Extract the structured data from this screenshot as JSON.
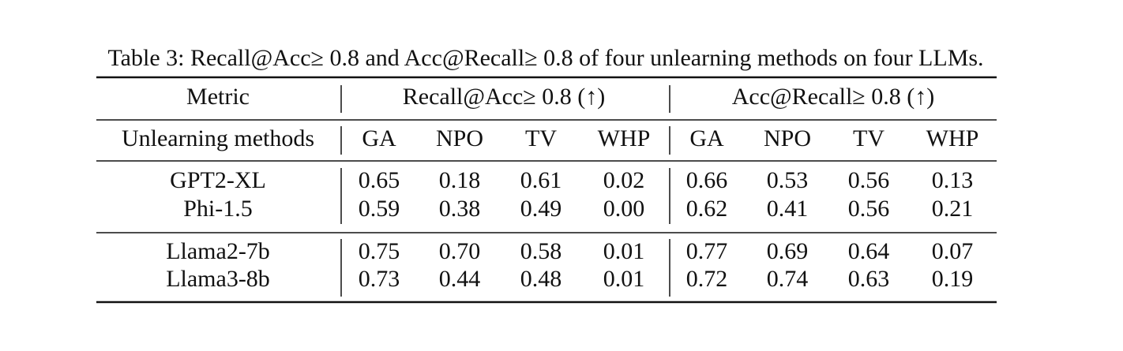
{
  "caption": "Table 3: Recall@Acc≥ 0.8 and Acc@Recall≥ 0.8 of four unlearning methods on four LLMs.",
  "table": {
    "header": {
      "metric": "Metric",
      "groups": [
        "Recall@Acc≥ 0.8 (↑)",
        "Acc@Recall≥ 0.8 (↑)"
      ]
    },
    "subheader": [
      "Unlearning methods",
      "GA",
      "NPO",
      "TV",
      "WHP",
      "GA",
      "NPO",
      "TV",
      "WHP"
    ],
    "row_groups": [
      [
        [
          "GPT2-XL",
          "0.65",
          "0.18",
          "0.61",
          "0.02",
          "0.66",
          "0.53",
          "0.56",
          "0.13"
        ],
        [
          "Phi-1.5",
          "0.59",
          "0.38",
          "0.49",
          "0.00",
          "0.62",
          "0.41",
          "0.56",
          "0.21"
        ]
      ],
      [
        [
          "Llama2-7b",
          "0.75",
          "0.70",
          "0.58",
          "0.01",
          "0.77",
          "0.69",
          "0.64",
          "0.07"
        ],
        [
          "Llama3-8b",
          "0.73",
          "0.44",
          "0.48",
          "0.01",
          "0.72",
          "0.74",
          "0.63",
          "0.19"
        ]
      ]
    ]
  }
}
